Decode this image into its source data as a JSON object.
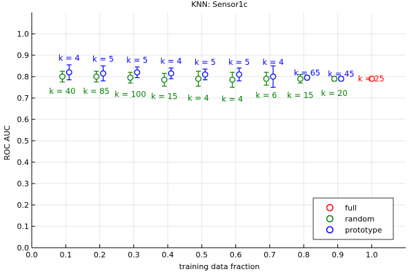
{
  "chart_data": {
    "type": "scatter",
    "title": "KNN: Sensor1c",
    "xlabel": "training data fraction",
    "ylabel": "ROC AUC",
    "xlim": [
      0.0,
      1.1
    ],
    "ylim": [
      0.0,
      1.1
    ],
    "x_ticks": [
      "0.0",
      "0.1",
      "0.2",
      "0.3",
      "0.4",
      "0.5",
      "0.6",
      "0.7",
      "0.8",
      "0.9",
      "1.0"
    ],
    "y_ticks": [
      "0.0",
      "0.1",
      "0.2",
      "0.3",
      "0.4",
      "0.5",
      "0.6",
      "0.7",
      "0.8",
      "0.9",
      "1.0"
    ],
    "grid": true,
    "legend_position": "bottom-right",
    "series": [
      {
        "name": "full",
        "color": "#ff0000",
        "points": [
          {
            "x": 1.0,
            "y": 0.79,
            "err": 0.01,
            "label": "k = 25"
          }
        ]
      },
      {
        "name": "random",
        "color": "#008000",
        "points": [
          {
            "x": 0.09,
            "y": 0.8,
            "err": 0.025,
            "label": "k = 40"
          },
          {
            "x": 0.19,
            "y": 0.8,
            "err": 0.025,
            "label": "k = 85"
          },
          {
            "x": 0.29,
            "y": 0.795,
            "err": 0.025,
            "label": "k = 100"
          },
          {
            "x": 0.39,
            "y": 0.785,
            "err": 0.03,
            "label": "k = 15"
          },
          {
            "x": 0.49,
            "y": 0.79,
            "err": 0.035,
            "label": "k = 4"
          },
          {
            "x": 0.59,
            "y": 0.785,
            "err": 0.035,
            "label": "k = 4"
          },
          {
            "x": 0.69,
            "y": 0.79,
            "err": 0.03,
            "label": "k = 6"
          },
          {
            "x": 0.79,
            "y": 0.79,
            "err": 0.02,
            "label": "k = 15"
          },
          {
            "x": 0.89,
            "y": 0.79,
            "err": 0.01,
            "label": "k = 20"
          }
        ]
      },
      {
        "name": "prototype",
        "color": "#0000ff",
        "points": [
          {
            "x": 0.11,
            "y": 0.82,
            "err": 0.035,
            "label": "k = 4"
          },
          {
            "x": 0.21,
            "y": 0.815,
            "err": 0.035,
            "label": "k = 5"
          },
          {
            "x": 0.31,
            "y": 0.82,
            "err": 0.025,
            "label": "k = 5"
          },
          {
            "x": 0.41,
            "y": 0.815,
            "err": 0.025,
            "label": "k = 4"
          },
          {
            "x": 0.51,
            "y": 0.81,
            "err": 0.025,
            "label": "k = 5"
          },
          {
            "x": 0.61,
            "y": 0.81,
            "err": 0.03,
            "label": "k = 5"
          },
          {
            "x": 0.71,
            "y": 0.8,
            "err": 0.05,
            "label": "k = 4"
          },
          {
            "x": 0.81,
            "y": 0.795,
            "err": 0.01,
            "label": "k = 65"
          },
          {
            "x": 0.91,
            "y": 0.79,
            "err": 0.01,
            "label": "k = 45"
          }
        ]
      }
    ]
  }
}
